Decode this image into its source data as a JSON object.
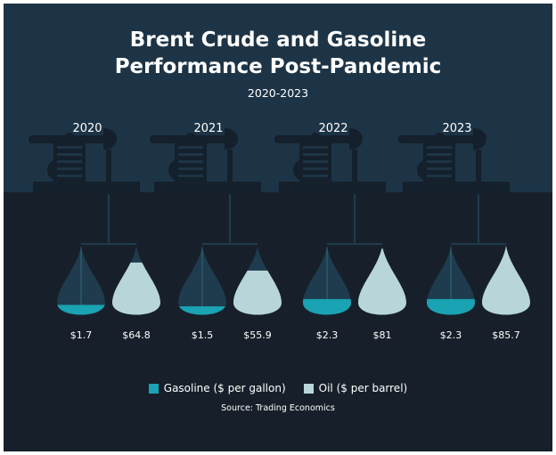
{
  "title_line1": "Brent Crude and Gasoline",
  "title_line2": "Performance Post-Pandemic",
  "subtitle": "2020-2023",
  "source": "Source: Trading Economics",
  "colors": {
    "background": "#17202a",
    "sky": "#1d3446",
    "pumpjack": "#14202b",
    "gasoline": "#1aa3b3",
    "oil": "#b8d6d9",
    "flask_empty": "#1f3b4e",
    "text": "#ffffff"
  },
  "chart_data": {
    "type": "bar",
    "categories": [
      "2020",
      "2021",
      "2022",
      "2023"
    ],
    "series": [
      {
        "name": "Gasoline ($ per gallon)",
        "values": [
          1.7,
          1.5,
          2.3,
          2.3
        ],
        "labels": [
          "$1.7",
          "$1.5",
          "$2.3",
          "$2.3"
        ],
        "fill_fraction": [
          0.19,
          0.17,
          0.27,
          0.27
        ]
      },
      {
        "name": "Oil ($ per barrel)",
        "values": [
          64.8,
          55.9,
          81,
          85.7
        ],
        "labels": [
          "$64.8",
          "$55.9",
          "$81",
          "$85.7"
        ],
        "fill_fraction": [
          0.77,
          0.66,
          0.96,
          1.0
        ]
      }
    ],
    "legend_position": "bottom",
    "grid": false
  }
}
